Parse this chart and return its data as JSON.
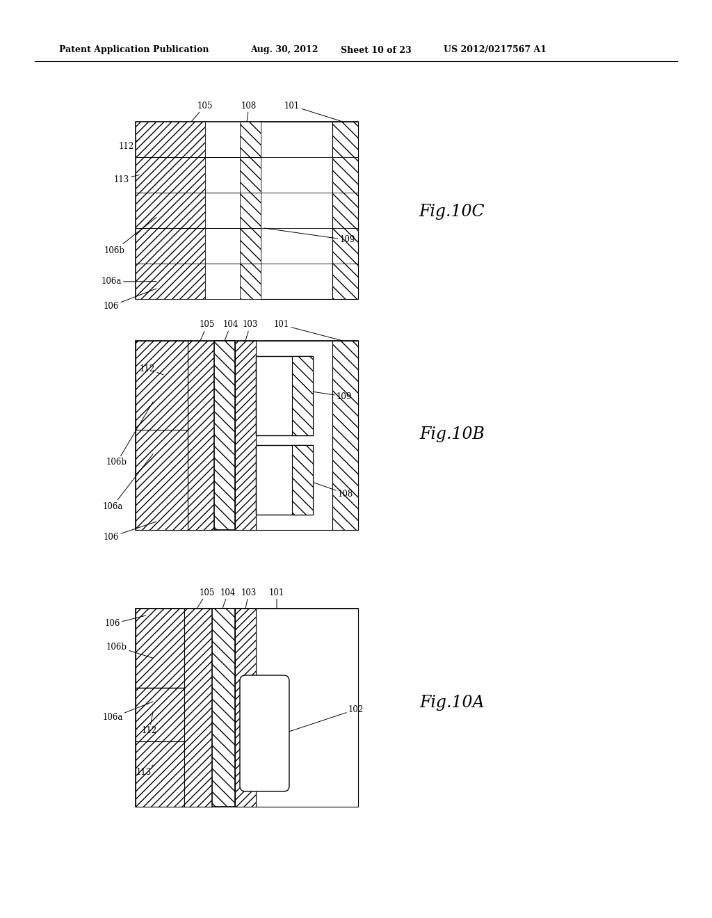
{
  "bg_color": "#ffffff",
  "header_left": "Patent Application Publication",
  "header_mid1": "Aug. 30, 2012",
  "header_mid2": "Sheet 10 of 23",
  "header_right": "US 2012/0217567 A1",
  "fig10c_label": "Fig.10C",
  "fig10b_label": "Fig.10B",
  "fig10a_label": "Fig.10A"
}
